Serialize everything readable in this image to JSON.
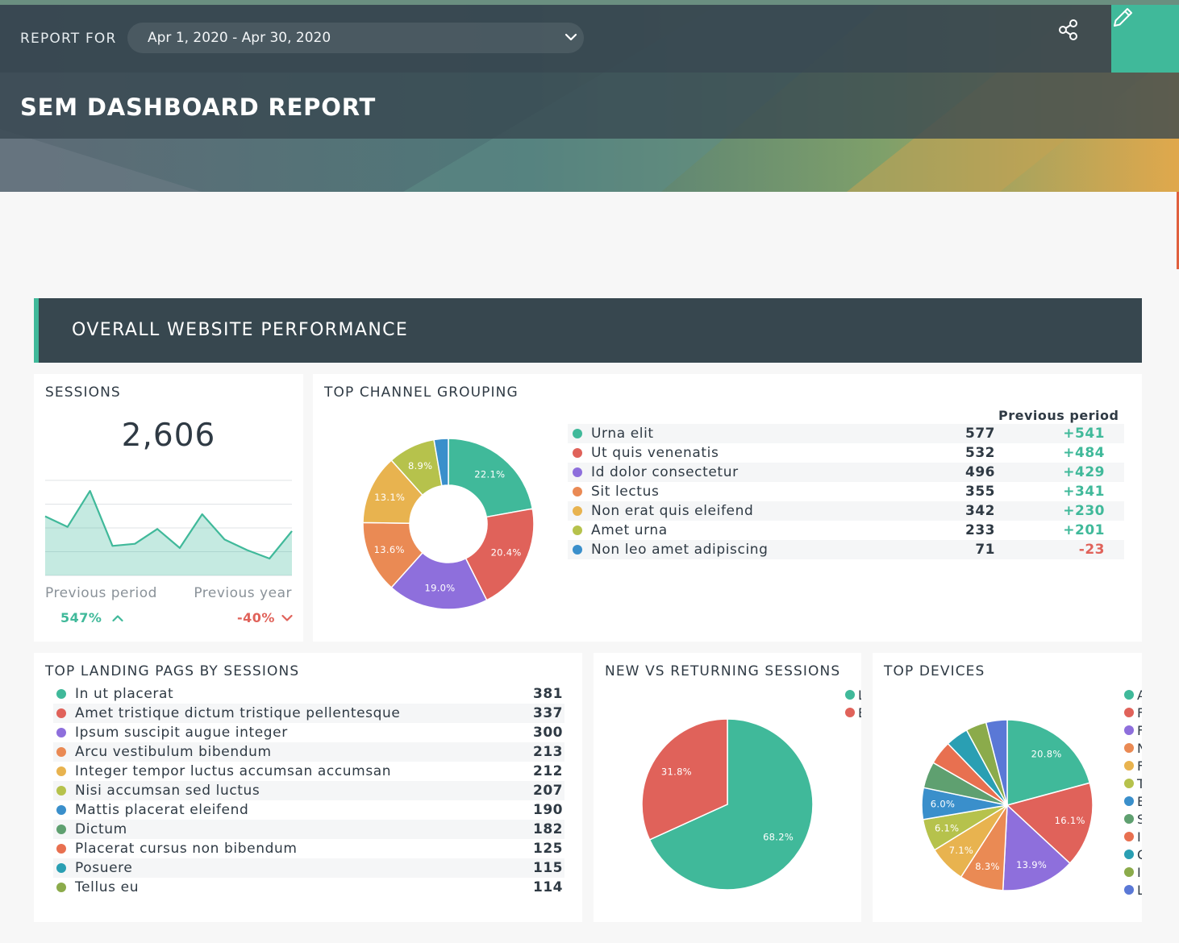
{
  "header": {
    "report_for_label": "REPORT FOR",
    "date_range": "Apr 1, 2020 - Apr 30, 2020",
    "title": "SEM DASHBOARD REPORT",
    "accent_color": "#40b99a"
  },
  "section": {
    "title": "OVERALL WEBSITE PERFORMANCE"
  },
  "sessions": {
    "title": "SESSIONS",
    "value": "2,606",
    "previous_period_label": "Previous period",
    "previous_period_change": "547%",
    "previous_year_label": "Previous year",
    "previous_year_change": "-40%",
    "chart_data": {
      "type": "area",
      "values": [
        28,
        23,
        40,
        14,
        15,
        22,
        13,
        29,
        17,
        12,
        8,
        21
      ],
      "ylim": [
        0,
        45
      ]
    }
  },
  "channels": {
    "title": "TOP CHANNEL GROUPING",
    "previous_period_header": "Previous period",
    "rows": [
      {
        "label": "Urna elit",
        "value": "577",
        "change": "+541",
        "color": "#40b99a"
      },
      {
        "label": "Ut quis venenatis",
        "value": "532",
        "change": "+484",
        "color": "#e0625a"
      },
      {
        "label": "Id dolor consectetur",
        "value": "496",
        "change": "+429",
        "color": "#8e6fdc"
      },
      {
        "label": "Sit lectus",
        "value": "355",
        "change": "+341",
        "color": "#ea8a54"
      },
      {
        "label": "Non erat quis eleifend",
        "value": "342",
        "change": "+230",
        "color": "#e8b34f"
      },
      {
        "label": "Amet urna",
        "value": "233",
        "change": "+201",
        "color": "#b6c24c"
      },
      {
        "label": "Non leo amet adipiscing",
        "value": "71",
        "change": "-23",
        "color": "#3a8fcb"
      }
    ],
    "chart_data": {
      "type": "pie",
      "donut": true,
      "categories": [
        "Urna elit",
        "Ut quis venenatis",
        "Id dolor consectetur",
        "Sit lectus",
        "Non erat quis eleifend",
        "Amet urna",
        "Non leo amet adipiscing"
      ],
      "values": [
        22.1,
        20.4,
        19.0,
        13.6,
        13.1,
        8.9,
        2.7
      ],
      "labels": [
        "22.1%",
        "20.4%",
        "19.0%",
        "13.6%",
        "13.1%",
        "8.9%",
        ""
      ]
    }
  },
  "landing": {
    "title": "TOP LANDING PAGS BY SESSIONS",
    "rows": [
      {
        "label": "In ut placerat",
        "value": "381",
        "color": "#40b99a"
      },
      {
        "label": "Amet tristique dictum tristique pellentesque",
        "value": "337",
        "color": "#e0625a"
      },
      {
        "label": "Ipsum suscipit augue integer",
        "value": "300",
        "color": "#8e6fdc"
      },
      {
        "label": "Arcu vestibulum bibendum",
        "value": "213",
        "color": "#ea8a54"
      },
      {
        "label": "Integer tempor luctus accumsan accumsan",
        "value": "212",
        "color": "#e8b34f"
      },
      {
        "label": "Nisi accumsan sed luctus",
        "value": "207",
        "color": "#b6c24c"
      },
      {
        "label": "Mattis placerat eleifend",
        "value": "190",
        "color": "#3a8fcb"
      },
      {
        "label": "Dictum",
        "value": "182",
        "color": "#5fa070"
      },
      {
        "label": "Placerat cursus non bibendum",
        "value": "125",
        "color": "#e87050"
      },
      {
        "label": "Posuere",
        "value": "115",
        "color": "#2a9fb3"
      },
      {
        "label": "Tellus eu",
        "value": "114",
        "color": "#8bab4b"
      }
    ]
  },
  "new_vs_returning": {
    "title": "NEW VS RETURNING SESSIONS",
    "legend": [
      {
        "label": "L",
        "color": "#40b99a"
      },
      {
        "label": "E",
        "color": "#e0625a"
      }
    ],
    "chart_data": {
      "type": "pie",
      "values": [
        68.2,
        31.8
      ],
      "labels": [
        "68.2%",
        "31.8%"
      ],
      "colors": [
        "#40b99a",
        "#e0625a"
      ]
    }
  },
  "devices": {
    "title": "TOP DEVICES",
    "legend": [
      {
        "label": "A",
        "color": "#40b99a"
      },
      {
        "label": "F",
        "color": "#e0625a"
      },
      {
        "label": "F",
        "color": "#8e6fdc"
      },
      {
        "label": "N",
        "color": "#ea8a54"
      },
      {
        "label": "F",
        "color": "#e8b34f"
      },
      {
        "label": "T",
        "color": "#b6c24c"
      },
      {
        "label": "E",
        "color": "#3a8fcb"
      },
      {
        "label": "S",
        "color": "#5fa070"
      },
      {
        "label": "I",
        "color": "#e87050"
      },
      {
        "label": "C",
        "color": "#2a9fb3"
      },
      {
        "label": "I",
        "color": "#8bab4b"
      },
      {
        "label": "L",
        "color": "#5a78d6"
      }
    ],
    "chart_data": {
      "type": "pie",
      "values": [
        20.8,
        16.1,
        13.9,
        8.3,
        7.1,
        6.1,
        6.0,
        5.0,
        4.5,
        4.3,
        3.9,
        4.0
      ],
      "labels": [
        "20.8%",
        "16.1%",
        "13.9%",
        "8.3%",
        "7.1%",
        "6.1%",
        "6.0%",
        "",
        "",
        "",
        "",
        ""
      ],
      "colors": [
        "#40b99a",
        "#e0625a",
        "#8e6fdc",
        "#ea8a54",
        "#e8b34f",
        "#b6c24c",
        "#3a8fcb",
        "#5fa070",
        "#e87050",
        "#2a9fb3",
        "#8bab4b",
        "#5a78d6"
      ]
    }
  }
}
